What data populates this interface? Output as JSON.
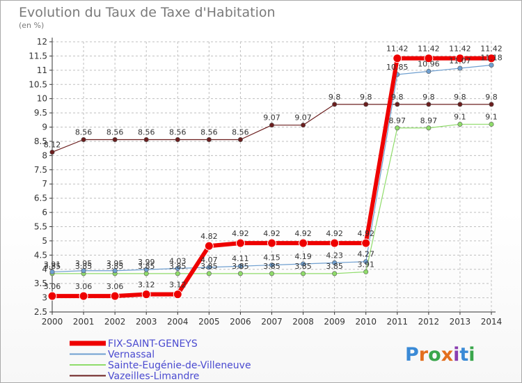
{
  "chart_data": {
    "type": "line",
    "title": "Evolution du Taux de Taxe d'Habitation",
    "subtitle": "(en %)",
    "x": [
      "2000",
      "2001",
      "2002",
      "2003",
      "2004",
      "2005",
      "2006",
      "2007",
      "2008",
      "2009",
      "2010",
      "2011",
      "2012",
      "2013",
      "2014"
    ],
    "ylim": [
      2.5,
      12
    ],
    "yticks": [
      2.5,
      3,
      3.5,
      4,
      4.5,
      5,
      5.5,
      6,
      6.5,
      7,
      7.5,
      8,
      8.5,
      9,
      9.5,
      10,
      10.5,
      11,
      11.5,
      12
    ],
    "ytick_labels": [
      "2.5",
      "3",
      "3.5",
      "4",
      "4.5",
      "5",
      "5.5",
      "6",
      "6.5",
      "7",
      "7.5",
      "8",
      "8.5",
      "9",
      "9.5",
      "10",
      "10.5",
      "11",
      "11.5",
      "12"
    ],
    "grid": true,
    "legend_position": "bottom-left",
    "series": [
      {
        "name": "Vazeilles-Limandre",
        "color": "#6b1e1e",
        "line_width": 1.2,
        "values": [
          8.12,
          8.56,
          8.56,
          8.56,
          8.56,
          8.56,
          8.56,
          9.07,
          9.07,
          9.8,
          9.8,
          9.8,
          9.8,
          9.8,
          9.8
        ],
        "labels": [
          "8.12",
          "8.56",
          "8.56",
          "8.56",
          "8.56",
          "8.56",
          "8.56",
          "9.07",
          "9.07",
          "9.8",
          "9.8",
          "9.8",
          "9.8",
          "9.8",
          "9.8"
        ]
      },
      {
        "name": "Sainte-Eugénie-de-Villeneuve",
        "color": "#8fdc6a",
        "line_width": 1.2,
        "values": [
          3.85,
          3.85,
          3.85,
          3.85,
          3.85,
          3.85,
          3.85,
          3.85,
          3.85,
          3.85,
          3.91,
          8.97,
          8.97,
          9.1,
          9.1
        ],
        "labels": [
          "3.85",
          "3.85",
          "3.85",
          "3.85",
          "3.85",
          "3.85",
          "3.85",
          "3.85",
          "3.85",
          "3.85",
          "3.91",
          "8.97",
          "8.97",
          "9.1",
          "9.1"
        ]
      },
      {
        "name": "Vernassal",
        "color": "#6f9fd0",
        "line_width": 1.2,
        "values": [
          3.91,
          3.95,
          3.95,
          3.99,
          4.03,
          4.07,
          4.11,
          4.15,
          4.19,
          4.23,
          4.27,
          10.85,
          10.96,
          11.07,
          11.18
        ],
        "labels": [
          "3.91",
          "3.95",
          "3.95",
          "3.99",
          "4.03",
          "4.07",
          "4.11",
          "4.15",
          "4.19",
          "4.23",
          "4.27",
          "10.85",
          "10.96",
          "11.07",
          "11.18"
        ]
      },
      {
        "name": "FIX-SAINT-GENEYS",
        "color": "#ee0000",
        "line_width": 6,
        "values": [
          3.06,
          3.06,
          3.06,
          3.12,
          3.12,
          4.82,
          4.92,
          4.92,
          4.92,
          4.92,
          4.92,
          11.42,
          11.42,
          11.42,
          11.42
        ],
        "labels": [
          "3.06",
          "3.06",
          "3.06",
          "3.12",
          "3.12",
          "4.82",
          "4.92",
          "4.92",
          "4.92",
          "4.92",
          "4.92",
          "11.42",
          "11.42",
          "11.42",
          "11.42"
        ]
      }
    ],
    "legend": [
      "FIX-SAINT-GENEYS",
      "Vernassal",
      "Sainte-Eugénie-de-Villeneuve",
      "Vazeilles-Limandre"
    ]
  },
  "legend_text_color": "#4a4ad0",
  "logo": {
    "text": "Proxiti",
    "colors": [
      "#3a8ad6",
      "#e36f1e",
      "#3aa64c",
      "#e36f1e",
      "#8a3db0",
      "#3a8ad6",
      "#3aa64c"
    ]
  }
}
